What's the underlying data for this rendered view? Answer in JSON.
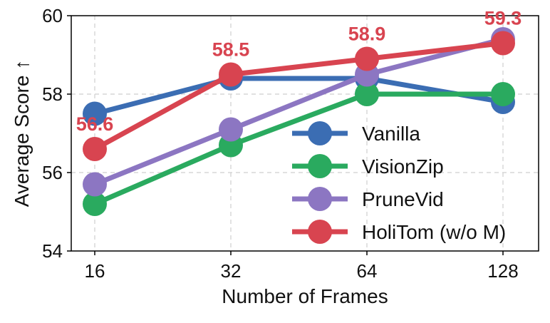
{
  "chart_data": {
    "type": "line",
    "categories": [
      "16",
      "32",
      "64",
      "128"
    ],
    "xlabel": "Number of Frames",
    "ylabel": "Average Score ↑",
    "ylim": [
      54,
      60
    ],
    "yticks": [
      "54",
      "56",
      "58",
      "60"
    ],
    "grid": true,
    "legend_position": "lower-right",
    "series": [
      {
        "name": "Vanilla",
        "color": "#3b6db3",
        "values": [
          57.5,
          58.4,
          58.4,
          57.8
        ]
      },
      {
        "name": "VisionZip",
        "color": "#2aaa5f",
        "values": [
          55.2,
          56.7,
          58.0,
          58.0
        ]
      },
      {
        "name": "PruneVid",
        "color": "#8c76c2",
        "values": [
          55.7,
          57.1,
          58.5,
          59.4
        ]
      },
      {
        "name": "HoliTom (w/o M)",
        "color": "#d84450",
        "values": [
          56.6,
          58.5,
          58.9,
          59.3
        ]
      }
    ],
    "data_labels": [
      {
        "series": "HoliTom (w/o M)",
        "index": 0,
        "text": "56.6"
      },
      {
        "series": "HoliTom (w/o M)",
        "index": 1,
        "text": "58.5"
      },
      {
        "series": "HoliTom (w/o M)",
        "index": 2,
        "text": "58.9"
      },
      {
        "series": "HoliTom (w/o M)",
        "index": 3,
        "text": "59.3"
      }
    ]
  }
}
